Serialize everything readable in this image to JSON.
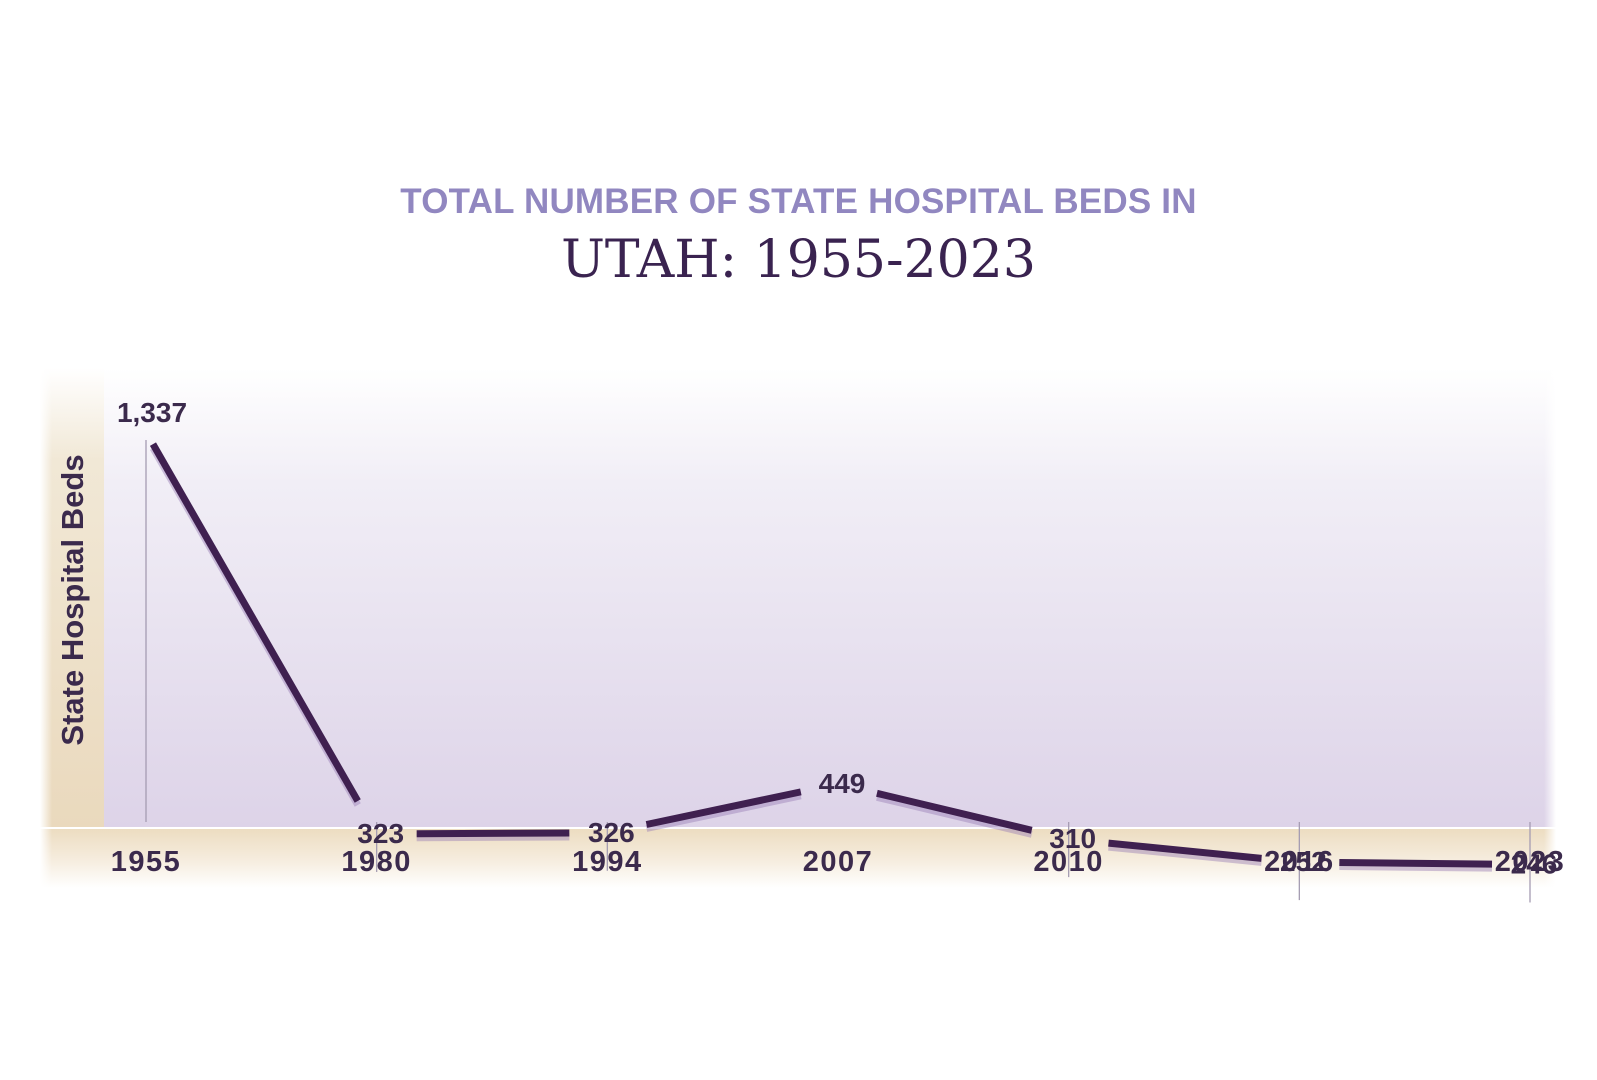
{
  "title_line1": "TOTAL NUMBER OF STATE HOSPITAL BEDS IN",
  "title_line2": "UTAH: 1955-2023",
  "colors": {
    "line": "#3f2050",
    "shadow": "#9a7fb5",
    "axis_text": "#3b2a4c",
    "title_accent": "#9187c0"
  },
  "chart_data": {
    "type": "line",
    "title": "TOTAL NUMBER OF STATE HOSPITAL BEDS IN UTAH: 1955-2023",
    "xlabel": "",
    "ylabel": "State Hospital Beds",
    "categories": [
      "1955",
      "1980",
      "1994",
      "2007",
      "2010",
      "2016",
      "2023"
    ],
    "values": [
      1337,
      323,
      326,
      449,
      310,
      252,
      246
    ],
    "data_labels": [
      "1,337",
      "323",
      "326",
      "449",
      "310",
      "252",
      "246"
    ],
    "ylim": [
      0,
      1337
    ],
    "grid": false,
    "legend": "none"
  }
}
